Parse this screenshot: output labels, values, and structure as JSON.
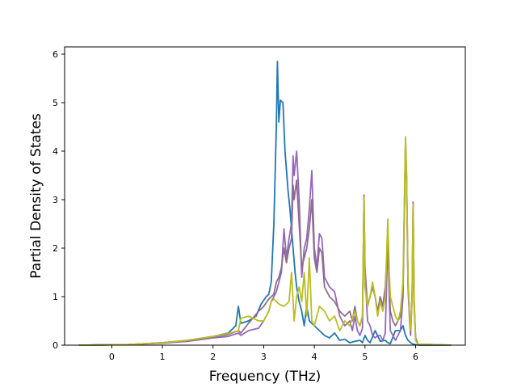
{
  "chart_data": {
    "type": "line",
    "xlabel": "Frequency (THz)",
    "ylabel": "Partial Density of States",
    "xlim": [
      -0.93,
      6.98
    ],
    "ylim": [
      0,
      6.15
    ],
    "xticks": [
      0,
      1,
      2,
      3,
      4,
      5,
      6
    ],
    "yticks": [
      0,
      1,
      2,
      3,
      4,
      5,
      6
    ],
    "grid": false,
    "series": [
      {
        "color": "#1f77b4",
        "x": [
          -0.65,
          0.3,
          1.0,
          1.5,
          2.0,
          2.3,
          2.45,
          2.5,
          2.55,
          2.7,
          2.85,
          2.95,
          3.05,
          3.1,
          3.15,
          3.2,
          3.25,
          3.27,
          3.3,
          3.33,
          3.38,
          3.42,
          3.48,
          3.52,
          3.58,
          3.62,
          3.65,
          3.7,
          3.75,
          3.8,
          3.85,
          3.9,
          3.95,
          4.0,
          4.1,
          4.2,
          4.3,
          4.4,
          4.5,
          4.6,
          4.7,
          4.8,
          4.9,
          4.95,
          5.0,
          5.05,
          5.1,
          5.2,
          5.3,
          5.4,
          5.45,
          5.5,
          5.6,
          5.7,
          5.75,
          5.8,
          5.85,
          5.9,
          5.95,
          6.0,
          6.05,
          6.1,
          6.7
        ],
        "y": [
          0,
          0.01,
          0.05,
          0.1,
          0.18,
          0.25,
          0.4,
          0.8,
          0.45,
          0.5,
          0.6,
          0.85,
          1.0,
          1.05,
          1.3,
          2.5,
          4.5,
          5.85,
          4.6,
          5.05,
          5.0,
          4.0,
          3.2,
          2.8,
          2.0,
          1.5,
          1.2,
          0.9,
          0.7,
          0.4,
          0.8,
          0.5,
          0.45,
          0.4,
          0.3,
          0.2,
          0.15,
          0.25,
          0.1,
          0.12,
          0.05,
          0.08,
          0.1,
          0.05,
          0.2,
          0.1,
          0.05,
          0.3,
          0.08,
          0.1,
          0.05,
          0.03,
          0.3,
          0.3,
          0.4,
          0.2,
          0.1,
          0.05,
          0.02,
          0.01,
          0,
          0,
          0
        ]
      },
      {
        "color": "#9467bd",
        "x": [
          -0.65,
          0.3,
          1.0,
          1.5,
          2.0,
          2.3,
          2.5,
          2.55,
          2.7,
          2.9,
          3.0,
          3.1,
          3.15,
          3.2,
          3.25,
          3.3,
          3.35,
          3.4,
          3.45,
          3.5,
          3.55,
          3.58,
          3.6,
          3.65,
          3.7,
          3.75,
          3.8,
          3.85,
          3.9,
          3.95,
          4.0,
          4.05,
          4.1,
          4.15,
          4.2,
          4.3,
          4.4,
          4.5,
          4.6,
          4.7,
          4.75,
          4.8,
          4.85,
          4.9,
          4.95,
          4.98,
          5.0,
          5.05,
          5.1,
          5.15,
          5.2,
          5.25,
          5.3,
          5.35,
          5.4,
          5.45,
          5.48,
          5.5,
          5.55,
          5.6,
          5.65,
          5.7,
          5.75,
          5.78,
          5.8,
          5.82,
          5.85,
          5.88,
          5.9,
          5.93,
          5.95,
          5.97,
          6.0,
          6.05,
          6.7
        ],
        "y": [
          0,
          0.01,
          0.04,
          0.08,
          0.15,
          0.18,
          0.25,
          0.2,
          0.3,
          0.35,
          0.5,
          0.7,
          0.9,
          1.0,
          1.1,
          1.3,
          1.5,
          2.4,
          1.8,
          2.2,
          2.5,
          3.9,
          3.5,
          4.0,
          3.0,
          1.4,
          2.0,
          2.2,
          2.8,
          3.6,
          2.0,
          1.6,
          2.3,
          2.2,
          1.4,
          1.2,
          1.1,
          0.6,
          0.4,
          0.5,
          0.3,
          0.6,
          0.3,
          0.2,
          0.35,
          3.1,
          1.5,
          0.5,
          0.4,
          0.2,
          0.15,
          0.2,
          0.2,
          0.1,
          0.25,
          2.2,
          1.0,
          0.3,
          0.2,
          0.1,
          0.2,
          0.3,
          1.0,
          3.0,
          4.25,
          3.5,
          1.2,
          0.5,
          0.2,
          1.0,
          2.95,
          0.8,
          0.1,
          0.02,
          0
        ]
      },
      {
        "color": "#8c6d8c",
        "x": [
          -0.65,
          0.3,
          1.0,
          1.5,
          2.0,
          2.3,
          2.5,
          2.55,
          2.7,
          2.9,
          3.0,
          3.1,
          3.15,
          3.2,
          3.25,
          3.3,
          3.35,
          3.4,
          3.45,
          3.5,
          3.55,
          3.58,
          3.6,
          3.65,
          3.7,
          3.75,
          3.8,
          3.85,
          3.9,
          3.95,
          4.0,
          4.05,
          4.1,
          4.15,
          4.2,
          4.3,
          4.4,
          4.5,
          4.6,
          4.7,
          4.75,
          4.8,
          4.85,
          4.9,
          4.95,
          4.98,
          5.0,
          5.05,
          5.1,
          5.15,
          5.2,
          5.25,
          5.3,
          5.35,
          5.4,
          5.45,
          5.48,
          5.5,
          5.55,
          5.6,
          5.65,
          5.7,
          5.75,
          5.78,
          5.8,
          5.82,
          5.85,
          5.88,
          5.9,
          5.93,
          5.95,
          5.97,
          6.0,
          6.05,
          6.7
        ],
        "y": [
          0,
          0.01,
          0.05,
          0.09,
          0.17,
          0.22,
          0.3,
          0.25,
          0.45,
          0.7,
          0.8,
          0.95,
          1.0,
          1.05,
          1.3,
          1.4,
          1.6,
          2.0,
          1.7,
          2.0,
          2.2,
          3.3,
          3.0,
          3.4,
          2.5,
          1.6,
          1.8,
          2.0,
          2.4,
          3.0,
          1.8,
          1.5,
          2.0,
          1.9,
          1.2,
          1.0,
          0.9,
          0.7,
          0.6,
          0.7,
          0.5,
          0.8,
          0.5,
          0.4,
          0.6,
          3.05,
          1.6,
          0.8,
          1.0,
          1.2,
          1.0,
          0.7,
          1.0,
          0.8,
          1.2,
          2.25,
          1.2,
          0.7,
          0.5,
          0.4,
          0.5,
          0.6,
          1.2,
          3.0,
          4.2,
          3.4,
          1.3,
          0.6,
          0.3,
          1.1,
          2.9,
          0.9,
          0.15,
          0.02,
          0
        ]
      },
      {
        "color": "#bcbd22",
        "x": [
          -0.65,
          0.3,
          1.0,
          1.5,
          2.0,
          2.3,
          2.5,
          2.55,
          2.7,
          2.9,
          3.0,
          3.1,
          3.15,
          3.2,
          3.3,
          3.4,
          3.5,
          3.55,
          3.6,
          3.65,
          3.7,
          3.75,
          3.8,
          3.85,
          3.9,
          3.95,
          4.0,
          4.1,
          4.2,
          4.3,
          4.4,
          4.5,
          4.6,
          4.7,
          4.8,
          4.85,
          4.9,
          4.95,
          4.98,
          5.0,
          5.05,
          5.1,
          5.15,
          5.2,
          5.25,
          5.3,
          5.35,
          5.4,
          5.45,
          5.48,
          5.5,
          5.55,
          5.6,
          5.65,
          5.7,
          5.75,
          5.78,
          5.8,
          5.82,
          5.85,
          5.88,
          5.9,
          5.93,
          5.95,
          5.97,
          6.0,
          6.05,
          6.7
        ],
        "y": [
          0,
          0.01,
          0.05,
          0.1,
          0.18,
          0.24,
          0.3,
          0.55,
          0.6,
          0.5,
          0.5,
          0.7,
          0.9,
          0.95,
          0.85,
          0.8,
          0.9,
          1.5,
          0.5,
          1.0,
          1.2,
          0.9,
          1.5,
          0.6,
          1.8,
          0.5,
          0.4,
          0.8,
          0.7,
          0.5,
          0.6,
          0.3,
          0.5,
          0.4,
          0.7,
          0.5,
          0.4,
          0.6,
          3.05,
          1.2,
          0.8,
          1.0,
          1.3,
          1.0,
          0.6,
          0.9,
          0.7,
          1.0,
          2.6,
          1.5,
          1.0,
          0.8,
          0.6,
          0.5,
          0.7,
          1.3,
          3.2,
          4.3,
          3.5,
          1.4,
          0.6,
          0.3,
          1.0,
          2.9,
          0.9,
          0.1,
          0.02,
          0
        ]
      }
    ]
  }
}
